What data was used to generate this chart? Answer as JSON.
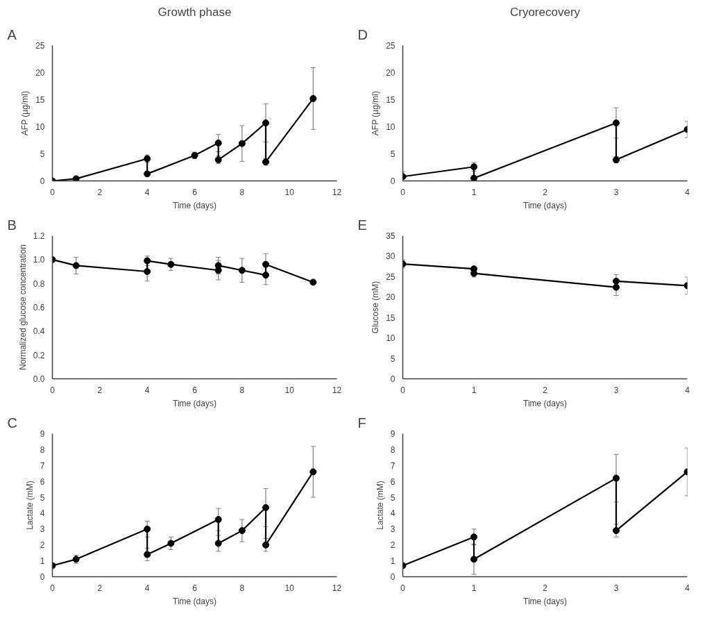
{
  "chart_data": [
    {
      "type": "line",
      "title": "Growth phase",
      "annotations": [
        "A"
      ],
      "xlabel": "Time (days)",
      "ylabel": "AFP (µg/ml)",
      "color": "#000000",
      "marker": "circle",
      "grid": false,
      "x": [
        0,
        1,
        4,
        4,
        6,
        7,
        7,
        8,
        9,
        9,
        11
      ],
      "values": [
        0,
        0.4,
        4.1,
        1.3,
        4.7,
        7.0,
        3.9,
        6.9,
        10.7,
        3.5,
        15.2
      ],
      "errors": [
        null,
        0.3,
        0.7,
        null,
        0.6,
        1.6,
        0.7,
        3.3,
        3.5,
        0.6,
        5.7
      ],
      "xlim": [
        0,
        12
      ],
      "xticks": [
        0,
        2,
        4,
        6,
        8,
        10,
        12
      ],
      "ylim": [
        0,
        25
      ],
      "yticks": [
        0,
        5,
        10,
        15,
        20,
        25
      ]
    },
    {
      "type": "line",
      "title": "Cryorecovery",
      "annotations": [
        "D"
      ],
      "xlabel": "Time (days)",
      "ylabel": "AFP (µg/ml)",
      "color": "#000000",
      "marker": "circle",
      "grid": false,
      "x": [
        0,
        1,
        1,
        3,
        3,
        4
      ],
      "values": [
        0.8,
        2.6,
        0.5,
        10.7,
        3.9,
        9.5
      ],
      "errors": [
        0.9,
        0.8,
        null,
        2.8,
        0.6,
        1.5
      ],
      "xlim": [
        0,
        4
      ],
      "xticks": [
        0,
        1,
        2,
        3,
        4
      ],
      "ylim": [
        0,
        25
      ],
      "yticks": [
        0,
        5,
        10,
        15,
        20,
        25
      ]
    },
    {
      "type": "line",
      "annotations": [
        "B"
      ],
      "xlabel": "Time (days)",
      "ylabel": "Normalized glucose concentration",
      "color": "#000000",
      "marker": "circle",
      "grid": false,
      "x": [
        0,
        1,
        4,
        4,
        5,
        7,
        7,
        8,
        9,
        9,
        11
      ],
      "values": [
        1.0,
        0.95,
        0.9,
        0.99,
        0.96,
        0.91,
        0.95,
        0.91,
        0.87,
        0.96,
        0.81
      ],
      "errors": [
        null,
        0.07,
        0.08,
        0.04,
        0.05,
        0.08,
        0.07,
        0.1,
        0.08,
        0.09,
        null
      ],
      "xlim": [
        0,
        12
      ],
      "xticks": [
        0,
        2,
        4,
        6,
        8,
        10,
        12
      ],
      "ylim": [
        0,
        1.2
      ],
      "yticks": [
        {
          "value": 0,
          "label": "0.0"
        },
        {
          "value": 0.2,
          "label": "0.2"
        },
        {
          "value": 0.4,
          "label": "0.4"
        },
        {
          "value": 0.6,
          "label": "0.6"
        },
        {
          "value": 0.8,
          "label": "0.8"
        },
        {
          "value": 1.0,
          "label": "1.0"
        },
        {
          "value": 1.2,
          "label": "1.2"
        }
      ]
    },
    {
      "type": "line",
      "annotations": [
        "E"
      ],
      "xlabel": "Time (days)",
      "ylabel": "Glucose (mM)",
      "color": "#000000",
      "marker": "circle",
      "grid": false,
      "x": [
        0,
        1,
        1,
        3,
        3,
        4
      ],
      "values": [
        28.1,
        26.9,
        25.8,
        22.4,
        23.9,
        22.8
      ],
      "errors": [
        1.0,
        null,
        0.9,
        2.0,
        1.6,
        2.1
      ],
      "xlim": [
        0,
        4
      ],
      "xticks": [
        0,
        1,
        2,
        3,
        4
      ],
      "ylim": [
        0,
        35
      ],
      "yticks": [
        0,
        5,
        10,
        15,
        20,
        25,
        30,
        35
      ]
    },
    {
      "type": "line",
      "annotations": [
        "C"
      ],
      "xlabel": "Time (days)",
      "ylabel": "Lactate (mM)",
      "color": "#000000",
      "marker": "circle",
      "grid": false,
      "x": [
        0,
        1,
        4,
        4,
        5,
        7,
        7,
        8,
        9,
        9,
        11
      ],
      "values": [
        0.7,
        1.1,
        3.0,
        1.4,
        2.1,
        3.6,
        2.1,
        2.9,
        4.35,
        2.0,
        6.6
      ],
      "errors": [
        null,
        0.25,
        0.5,
        0.4,
        0.4,
        0.7,
        0.5,
        0.7,
        1.2,
        0.4,
        1.6
      ],
      "xlim": [
        0,
        12
      ],
      "xticks": [
        0,
        2,
        4,
        6,
        8,
        10,
        12
      ],
      "ylim": [
        0,
        9
      ],
      "yticks": [
        0,
        1,
        2,
        3,
        4,
        5,
        6,
        7,
        8,
        9
      ]
    },
    {
      "type": "line",
      "annotations": [
        "F"
      ],
      "xlabel": "Time (days)",
      "ylabel": "Lactate (mM)",
      "color": "#000000",
      "marker": "circle",
      "grid": false,
      "x": [
        0,
        1,
        1,
        3,
        3,
        4
      ],
      "values": [
        0.7,
        2.5,
        1.1,
        6.2,
        2.9,
        6.6
      ],
      "errors": [
        null,
        0.5,
        0.95,
        1.5,
        0.4,
        1.5
      ],
      "xlim": [
        0,
        4
      ],
      "xticks": [
        0,
        1,
        2,
        3,
        4
      ],
      "ylim": [
        0,
        9
      ],
      "yticks": [
        0,
        1,
        2,
        3,
        4,
        5,
        6,
        7,
        8,
        9
      ]
    }
  ]
}
